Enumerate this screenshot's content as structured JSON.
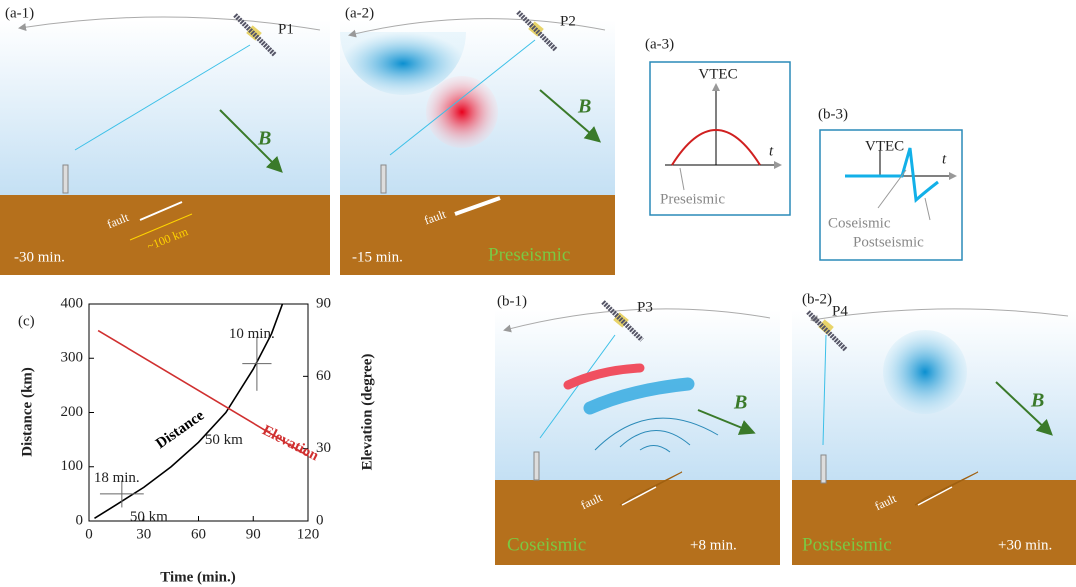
{
  "panels": {
    "a1": {
      "label": "(a-1)",
      "satellite": "P1",
      "field": "B",
      "fault": "fault",
      "scale": "~100 km",
      "time": "-30 min."
    },
    "a2": {
      "label": "(a-2)",
      "satellite": "P2",
      "field": "B",
      "fault": "fault",
      "time": "-15 min.",
      "phase": "Preseismic"
    },
    "a3": {
      "label": "(a-3)",
      "y_label": "VTEC",
      "x_label": "t",
      "curve": "Preseismic"
    },
    "b3": {
      "label": "(b-3)",
      "y_label": "VTEC",
      "x_label": "t",
      "curve1": "Coseismic",
      "curve2": "Postseismic"
    },
    "b1": {
      "label": "(b-1)",
      "satellite": "P3",
      "field": "B",
      "fault": "fault",
      "phase": "Coseismic",
      "time": "+8 min."
    },
    "b2": {
      "label": "(b-2)",
      "satellite": "P4",
      "field": "B",
      "fault": "fault",
      "phase": "Postseismic",
      "time": "+30 min."
    }
  },
  "chart_data": {
    "type": "line",
    "label": "(c)",
    "x_label": "Time (min.)",
    "y_label": "Distance (km)",
    "y2_label": "Elevation (degree)",
    "xlim": [
      0,
      120
    ],
    "xticks": [
      0,
      30,
      60,
      90,
      120
    ],
    "ylim": [
      0,
      400
    ],
    "yticks": [
      0,
      100,
      200,
      300,
      400
    ],
    "y2lim": [
      0,
      90
    ],
    "y2ticks": [
      0,
      30,
      60,
      90
    ],
    "series": [
      {
        "name": "Distance",
        "color": "#000000",
        "x": [
          3,
          15,
          30,
          45,
          60,
          75,
          90,
          100,
          106
        ],
        "values": [
          5,
          30,
          62,
          100,
          145,
          200,
          280,
          345,
          400
        ]
      },
      {
        "name": "Elevation",
        "color": "#d03030",
        "axis": "y2",
        "x": [
          5,
          120
        ],
        "values": [
          79,
          27
        ]
      }
    ],
    "error_bars": [
      {
        "x": 18,
        "y": 50,
        "xerr": 12,
        "yerr": 25,
        "x_label": "18 min.",
        "y_label": "50 km"
      },
      {
        "x": 92,
        "y": 290,
        "xerr": 8,
        "yerr": 50,
        "x_label": "10 min.",
        "y_label": "50 km"
      }
    ]
  }
}
